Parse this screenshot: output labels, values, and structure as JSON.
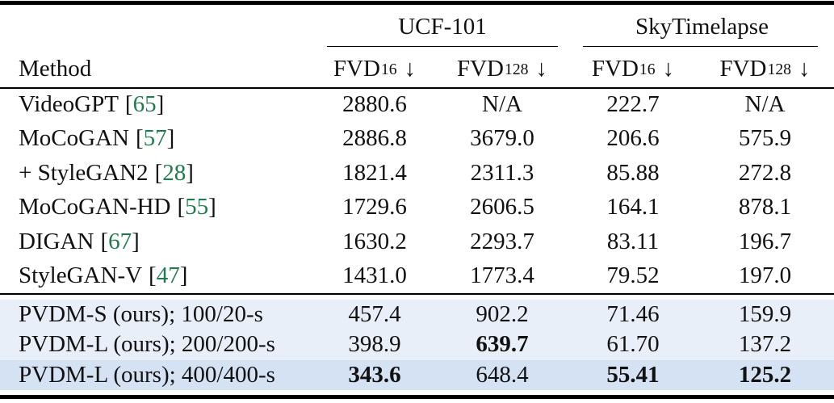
{
  "table": {
    "groups": [
      {
        "label": "UCF-101"
      },
      {
        "label": "SkyTimelapse"
      }
    ],
    "method_header": "Method",
    "metric_headers": [
      {
        "name": "FVD",
        "subscript": "16",
        "direction": "↓"
      },
      {
        "name": "FVD",
        "subscript": "128",
        "direction": "↓"
      },
      {
        "name": "FVD",
        "subscript": "16",
        "direction": "↓"
      },
      {
        "name": "FVD",
        "subscript": "128",
        "direction": "↓"
      }
    ],
    "rows": [
      {
        "method": "VideoGPT",
        "citation": "65",
        "values": [
          "2880.6",
          "N/A",
          "222.7",
          "N/A"
        ],
        "bold": [],
        "highlight": null
      },
      {
        "method": "MoCoGAN",
        "citation": "57",
        "values": [
          "2886.8",
          "3679.0",
          "206.6",
          "575.9"
        ],
        "bold": [],
        "highlight": null
      },
      {
        "method": "+ StyleGAN2",
        "citation": "28",
        "values": [
          "1821.4",
          "2311.3",
          "85.88",
          "272.8"
        ],
        "bold": [],
        "highlight": null
      },
      {
        "method": "MoCoGAN-HD",
        "citation": "55",
        "values": [
          "1729.6",
          "2606.5",
          "164.1",
          "878.1"
        ],
        "bold": [],
        "highlight": null
      },
      {
        "method": "DIGAN",
        "citation": "67",
        "values": [
          "1630.2",
          "2293.7",
          "83.11",
          "196.7"
        ],
        "bold": [],
        "highlight": null
      },
      {
        "method": "StyleGAN-V",
        "citation": "47",
        "values": [
          "1431.0",
          "1773.4",
          "79.52",
          "197.0"
        ],
        "bold": [],
        "highlight": null
      },
      {
        "method": "PVDM-S (ours); 100/20-s",
        "citation": null,
        "values": [
          "457.4",
          "902.2",
          "71.46",
          "159.9"
        ],
        "bold": [],
        "highlight": "light"
      },
      {
        "method": "PVDM-L (ours); 200/200-s",
        "citation": null,
        "values": [
          "398.9",
          "639.7",
          "61.70",
          "137.2"
        ],
        "bold": [
          1
        ],
        "highlight": "light"
      },
      {
        "method": "PVDM-L (ours); 400/400-s",
        "citation": null,
        "values": [
          "343.6",
          "648.4",
          "55.41",
          "125.2"
        ],
        "bold": [
          0,
          2,
          3
        ],
        "highlight": "dark"
      }
    ],
    "colors": {
      "citation_green": "#1e7b4e",
      "highlight_light": "#e8eff8",
      "highlight_dark": "#d5e2f3",
      "rule": "#000000",
      "text": "#111111"
    }
  }
}
